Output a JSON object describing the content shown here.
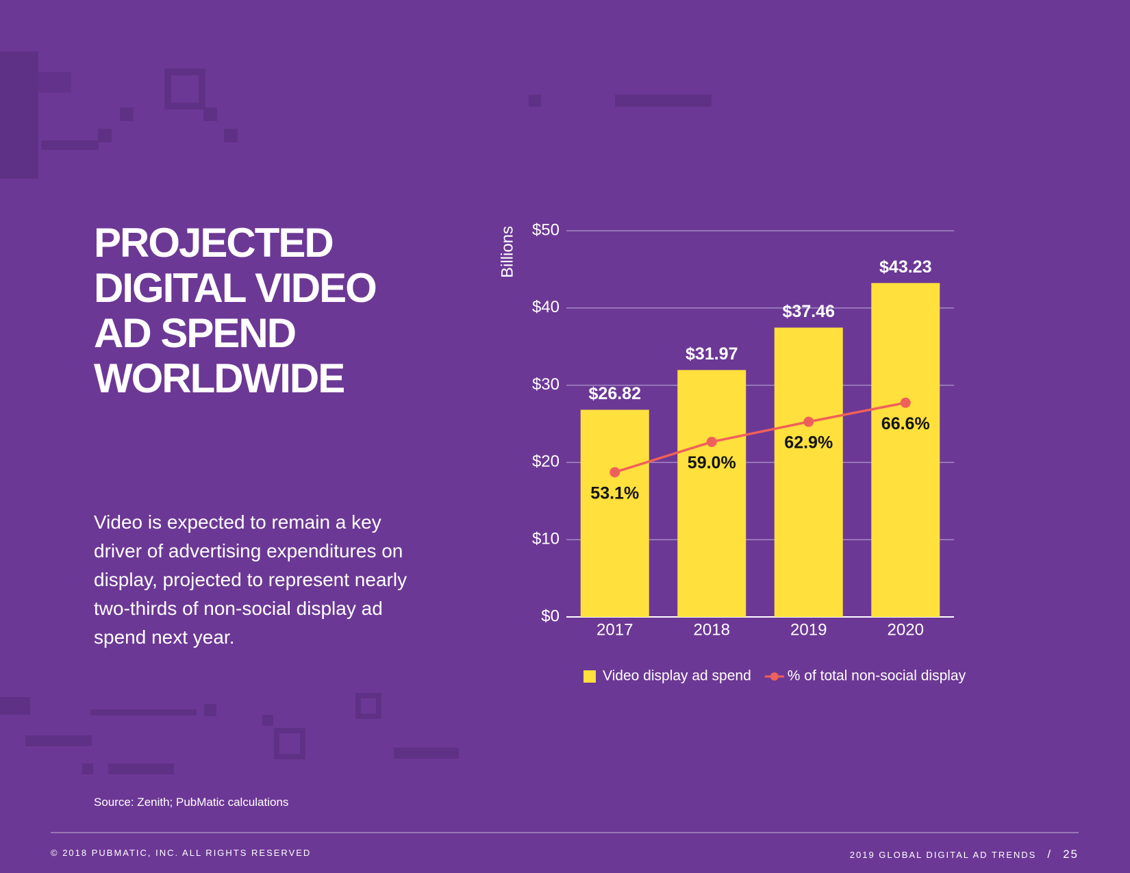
{
  "header": {
    "title_lines": [
      "PROJECTED",
      "DIGITAL VIDEO",
      "AD SPEND",
      "WORLDWIDE"
    ],
    "body": "Video is expected to remain a key driver of advertising expenditures on display, projected to represent nearly two-thirds of non-social display ad spend next year.",
    "source": "Source: Zenith; PubMatic calculations"
  },
  "footer": {
    "copyright": "© 2018 PUBMATIC, INC. ALL RIGHTS RESERVED",
    "publication": "2019 GLOBAL DIGITAL AD TRENDS",
    "separator": "/",
    "page": "25"
  },
  "chart_data": {
    "type": "bar",
    "y_label": "Billions",
    "categories": [
      "2017",
      "2018",
      "2019",
      "2020"
    ],
    "ylim": [
      0,
      50
    ],
    "yticks": [
      {
        "value": 0,
        "label": "$0"
      },
      {
        "value": 10,
        "label": "$10"
      },
      {
        "value": 20,
        "label": "$20"
      },
      {
        "value": 30,
        "label": "$30"
      },
      {
        "value": 40,
        "label": "$40"
      },
      {
        "value": 50,
        "label": "$50"
      }
    ],
    "y2lim": [
      25,
      100
    ],
    "grid": true,
    "legend": "bottom",
    "series": [
      {
        "name": "Video display ad spend",
        "type": "bar",
        "color": "#ffe03c",
        "values": [
          26.82,
          31.97,
          37.46,
          43.23
        ],
        "value_labels": [
          "$26.82",
          "$31.97",
          "$37.46",
          "$43.23"
        ]
      },
      {
        "name": "% of total non-social display",
        "type": "line",
        "axis": "y2",
        "color": "#f0605a",
        "values": [
          53.1,
          59.0,
          62.9,
          66.6
        ],
        "value_labels": [
          "53.1%",
          "59.0%",
          "62.9%",
          "66.6%"
        ]
      }
    ]
  }
}
